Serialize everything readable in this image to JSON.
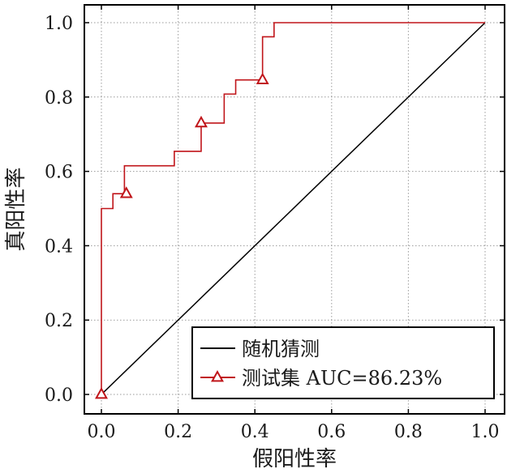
{
  "chart_data": {
    "type": "line",
    "title": "",
    "xlabel": "假阳性率",
    "ylabel": "真阳性率",
    "xlim": [
      0,
      1.0
    ],
    "ylim": [
      0,
      1.0
    ],
    "x_ticks": [
      "0.0",
      "0.2",
      "0.4",
      "0.6",
      "0.8",
      "1.0"
    ],
    "y_ticks": [
      "0.0",
      "0.2",
      "0.4",
      "0.6",
      "0.8",
      "1.0"
    ],
    "grid": true,
    "legend_position": "lower-right",
    "series": [
      {
        "name": "随机猜测",
        "color": "#000000",
        "marker": "none",
        "x": [
          0,
          1
        ],
        "y": [
          0,
          1
        ]
      },
      {
        "name": "测试集 AUC=86.23%",
        "color": "#c0151a",
        "marker": "triangle",
        "step": true,
        "x": [
          0.0,
          0.0,
          0.03,
          0.03,
          0.06,
          0.06,
          0.19,
          0.19,
          0.26,
          0.26,
          0.32,
          0.32,
          0.35,
          0.35,
          0.42,
          0.42,
          0.45,
          0.45,
          1.0
        ],
        "y": [
          0.0,
          0.5,
          0.5,
          0.54,
          0.54,
          0.615,
          0.615,
          0.654,
          0.654,
          0.73,
          0.73,
          0.808,
          0.808,
          0.846,
          0.846,
          0.962,
          0.962,
          1.0,
          1.0
        ],
        "marker_points": [
          [
            0.0,
            0.0
          ],
          [
            0.065,
            0.54
          ],
          [
            0.26,
            0.73
          ],
          [
            0.42,
            0.846
          ]
        ]
      }
    ]
  }
}
